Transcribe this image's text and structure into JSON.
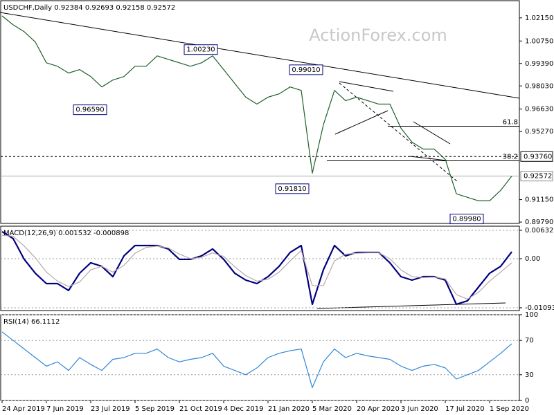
{
  "chart_data": [
    {
      "type": "line",
      "title": "USDCHF,Daily  0.92384 0.92693 0.92158 0.92572",
      "watermark": "ActionForex.com",
      "categories": [
        "24 Apr 2019",
        null,
        null,
        null,
        "7 Jun 2019",
        null,
        null,
        null,
        "23 Jul 2019",
        null,
        null,
        null,
        "5 Sep 2019",
        null,
        null,
        null,
        "21 Oct 2019",
        null,
        null,
        null,
        "4 Dec 2019",
        null,
        null,
        null,
        "21 Jan 2020",
        null,
        null,
        null,
        "5 Mar 2020",
        null,
        null,
        null,
        "20 Apr 2020",
        null,
        null,
        null,
        "3 Jun 2020",
        null,
        null,
        null,
        "17 Jul 2020",
        null,
        null,
        null,
        "1 Sep 2020",
        null,
        null
      ],
      "series": [
        {
          "name": "USDCHF",
          "color": "#1f5f2a",
          "values": [
            1.0227,
            1.0173,
            1.0131,
            1.0069,
            0.9943,
            0.9922,
            0.9881,
            0.9902,
            0.986,
            0.9797,
            0.9839,
            0.986,
            0.9922,
            0.9922,
            0.9985,
            0.9964,
            0.9943,
            0.9922,
            0.9943,
            0.9985,
            0.9902,
            0.9818,
            0.9735,
            0.9693,
            0.9735,
            0.9755,
            0.9797,
            0.9776,
            0.9275,
            0.9568,
            0.9776,
            0.9714,
            0.9735,
            0.9714,
            0.9693,
            0.9693,
            0.9547,
            0.9463,
            0.9421,
            0.9421,
            0.9359,
            0.915,
            0.9129,
            0.9108,
            0.9108,
            0.9171,
            0.9257
          ]
        }
      ],
      "ylim": [
        0.8971,
        1.0319
      ],
      "yticks": [
        {
          "value": 1.0215,
          "label": "1.02150"
        },
        {
          "value": 1.0075,
          "label": "1.00750"
        },
        {
          "value": 0.9939,
          "label": "0.99390"
        },
        {
          "value": 0.9803,
          "label": "0.98030"
        },
        {
          "value": 0.9663,
          "label": "0.96630"
        },
        {
          "value": 0.9527,
          "label": "0.95270"
        },
        {
          "value": 0.9115,
          "label": "0.91150"
        },
        {
          "value": 0.8979,
          "label": "0.89790"
        }
      ],
      "price_levels": [
        {
          "value": 0.9376,
          "label": "0.93760"
        },
        {
          "value": 0.92572,
          "label": "0.92572"
        }
      ],
      "fib_levels": [
        {
          "value": 0.9559,
          "label": "61.8"
        },
        {
          "value": 0.935,
          "label": "38.2"
        }
      ],
      "annotations": [
        {
          "value": 1.0023,
          "label": "1.00230"
        },
        {
          "value": 0.9659,
          "label": "0.96590"
        },
        {
          "value": 0.9901,
          "label": "0.99010"
        },
        {
          "value": 0.9181,
          "label": "0.91810"
        },
        {
          "value": 0.8998,
          "label": "0.89980"
        }
      ],
      "grid": false
    },
    {
      "type": "line",
      "title": "MACD(12,26,9) 0.001532 -0.000898",
      "series": [
        {
          "name": "MACD",
          "color": "#000080",
          "values": [
            0.00601,
            0.00447,
            -0.00015,
            -0.00324,
            -0.00555,
            -0.00555,
            -0.00709,
            -0.00324,
            -0.00092,
            -0.0017,
            -0.00401,
            0.00062,
            0.00293,
            0.00293,
            0.00293,
            0.00216,
            -0.00015,
            -0.00015,
            0.00062,
            0.00216,
            -0.00015,
            -0.00324,
            -0.00478,
            -0.00555,
            -0.00401,
            -0.0017,
            0.00139,
            0.00293,
            -0.01017,
            -0.00247,
            0.00293,
            0.00062,
            0.00139,
            0.00139,
            0.00139,
            -0.00092,
            -0.00401,
            -0.00478,
            -0.00401,
            -0.00401,
            -0.00478,
            -0.01017,
            -0.0094,
            -0.00632,
            -0.00324,
            -0.0017,
            0.00153
          ]
        },
        {
          "name": "Signal",
          "color": "#b8a8a8",
          "values": [
            0.0052,
            0.005,
            0.0028,
            0.0002,
            -0.003,
            -0.005,
            -0.0062,
            -0.0052,
            -0.0025,
            -0.0017,
            -0.003,
            -0.0015,
            0.0012,
            0.0025,
            0.0028,
            0.0024,
            0.001,
            0,
            0.0003,
            0.0013,
            0.0005,
            -0.0018,
            -0.0038,
            -0.005,
            -0.0046,
            -0.003,
            -0.0005,
            0.0018,
            -0.006,
            -0.006,
            -0.0005,
            0.001,
            0.0012,
            0.0013,
            0.0013,
            0,
            -0.0025,
            -0.004,
            -0.0042,
            -0.0041,
            -0.0045,
            -0.008,
            -0.009,
            -0.0075,
            -0.005,
            -0.003,
            -0.0009
          ]
        }
      ],
      "ylim": [
        -0.01156,
        0.00724
      ],
      "yticks": [
        0.006321,
        {
          "value": 0,
          "label": "0.00"
        },
        -0.010939
      ],
      "grid": true
    },
    {
      "type": "line",
      "title": "RSI(14) 66.1112",
      "series": [
        {
          "name": "RSI",
          "color": "#2f86d6",
          "values": [
            80,
            70,
            60,
            50,
            40,
            45,
            35,
            50,
            42,
            35,
            48,
            50,
            55,
            55,
            60,
            50,
            45,
            48,
            50,
            55,
            40,
            35,
            30,
            38,
            50,
            55,
            58,
            60,
            15,
            45,
            60,
            50,
            55,
            52,
            50,
            48,
            40,
            35,
            40,
            42,
            38,
            25,
            30,
            35,
            45,
            55,
            66.11
          ]
        }
      ],
      "ylim": [
        0,
        100
      ],
      "yticks": [
        100,
        70,
        30,
        0
      ],
      "grid": true
    }
  ]
}
